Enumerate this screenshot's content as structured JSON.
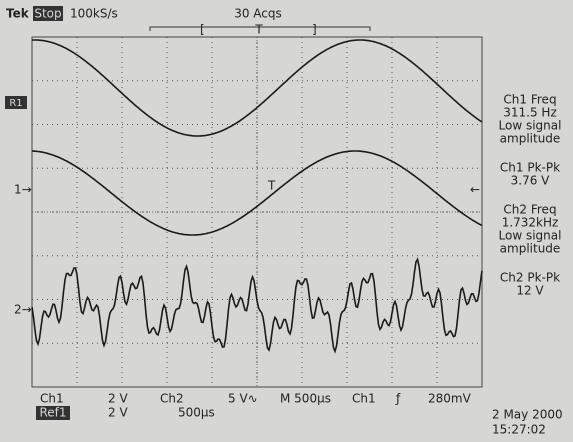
{
  "header": {
    "brand": "Tek",
    "mode": "Stop",
    "sample_rate": "100kS/s",
    "acquisitions": "30 Acqs",
    "trigger_position": "T"
  },
  "markers": {
    "ref1": "R1",
    "ch1": "1→",
    "ch2": "2→",
    "trigger": "T"
  },
  "measurements": [
    {
      "title": "Ch1 Freq",
      "lines": [
        "311.5 Hz",
        "Low signal",
        "amplitude"
      ]
    },
    {
      "title": "Ch1 Pk-Pk",
      "lines": [
        "3.76 V"
      ]
    },
    {
      "title": "Ch2 Freq",
      "lines": [
        "1.732kHz",
        "Low signal",
        "amplitude"
      ]
    },
    {
      "title": "Ch2 Pk-Pk",
      "lines": [
        "12 V"
      ]
    }
  ],
  "footer": {
    "ch1_label": "Ch1",
    "ch1_scale": "2 V",
    "ch2_label": "Ch2",
    "ch2_scale": "5 V∿",
    "timebase": "M 500µs",
    "trigger_source": "Ch1",
    "trigger_slope": "ƒ",
    "trigger_level": "280mV",
    "ref1_label": "Ref1",
    "ref1_scale": "2 V",
    "ref1_time": "500µs",
    "date": "2 May 2000",
    "time": "15:27:02"
  }
}
